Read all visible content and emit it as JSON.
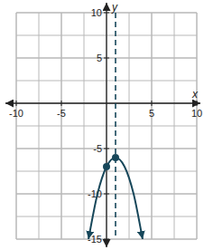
{
  "chart_data": {
    "type": "line",
    "x_label": "x",
    "y_label": "y",
    "xlim": [
      -10,
      10
    ],
    "ylim": [
      -15,
      10
    ],
    "xticks": [
      -10,
      -5,
      5,
      10
    ],
    "yticks": [
      -15,
      -10,
      -5,
      5,
      10
    ],
    "grid": true,
    "series": [
      {
        "type": "line",
        "color": "#17475a",
        "marker": "arrow",
        "x": [
          -2,
          -1,
          0,
          1,
          2,
          3,
          4
        ],
        "values": [
          -15,
          -10,
          -7,
          -6,
          -7,
          -10,
          -15
        ]
      },
      {
        "type": "scatter",
        "color": "#17475a",
        "marker": "circle",
        "x": [
          0,
          1
        ],
        "values": [
          -7,
          -6
        ]
      },
      {
        "type": "line",
        "color": "#17475a",
        "line_style": "dashed",
        "x": [
          1,
          1
        ],
        "values": [
          10,
          -15
        ]
      }
    ]
  }
}
